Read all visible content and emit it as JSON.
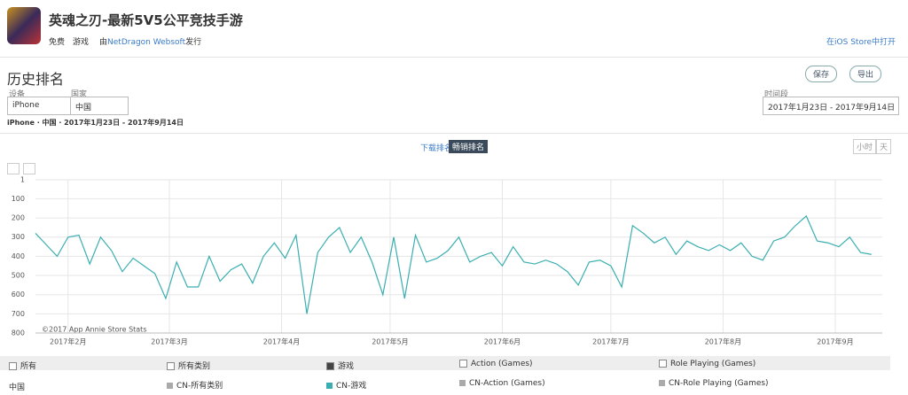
{
  "header": {
    "title": "英魂之刃-最新5V5公平竞技手游",
    "price": "免费",
    "genre": "游戏",
    "publisher_prefix": "由",
    "publisher": "NetDragon Websoft",
    "publisher_suffix": "发行",
    "open_store": "在iOS Store中打开"
  },
  "section_title": "历史排名",
  "buttons": {
    "save": "保存",
    "export": "导出"
  },
  "filters": {
    "device_label": "设备",
    "device": "iPhone",
    "country_label": "国家",
    "country": "中国",
    "period_label": "时间段",
    "period": "2017年1月23日 - 2017年9月14日"
  },
  "breadcrumb": [
    "iPhone",
    "中国",
    "2017年1月23日",
    "2017年9月14日"
  ],
  "tabs": [
    "下载排名",
    "畅销排名"
  ],
  "granularity": [
    "小时",
    "天"
  ],
  "legend": {
    "headers": [
      "所有",
      "所有类别",
      "游戏",
      "Action (Games)",
      "Role Playing (Games)"
    ],
    "row_label": "中国",
    "items": [
      "CN-所有类别",
      "CN-游戏",
      "CN-Action (Games)",
      "CN-Role Playing (Games)"
    ],
    "colors": [
      "#aaaaaa",
      "#3aaeb0",
      "#aaaaaa",
      "#aaaaaa"
    ]
  },
  "chart_data": {
    "type": "line",
    "annotation": "©2017 App Annie Store Stats",
    "x": [
      "2017-01-23",
      "2017-01-26",
      "2017-01-29",
      "2017-02-01",
      "2017-02-04",
      "2017-02-07",
      "2017-02-10",
      "2017-02-13",
      "2017-02-16",
      "2017-02-19",
      "2017-02-22",
      "2017-02-25",
      "2017-02-28",
      "2017-03-03",
      "2017-03-06",
      "2017-03-09",
      "2017-03-12",
      "2017-03-15",
      "2017-03-18",
      "2017-03-21",
      "2017-03-24",
      "2017-03-27",
      "2017-03-30",
      "2017-04-02",
      "2017-04-05",
      "2017-04-08",
      "2017-04-11",
      "2017-04-14",
      "2017-04-17",
      "2017-04-20",
      "2017-04-23",
      "2017-04-26",
      "2017-04-29",
      "2017-05-02",
      "2017-05-05",
      "2017-05-08",
      "2017-05-11",
      "2017-05-14",
      "2017-05-17",
      "2017-05-20",
      "2017-05-23",
      "2017-05-26",
      "2017-05-29",
      "2017-06-01",
      "2017-06-04",
      "2017-06-07",
      "2017-06-10",
      "2017-06-13",
      "2017-06-16",
      "2017-06-19",
      "2017-06-22",
      "2017-06-25",
      "2017-06-28",
      "2017-07-01",
      "2017-07-04",
      "2017-07-07",
      "2017-07-10",
      "2017-07-13",
      "2017-07-16",
      "2017-07-19",
      "2017-07-22",
      "2017-07-25",
      "2017-07-28",
      "2017-07-31",
      "2017-08-03",
      "2017-08-06",
      "2017-08-09",
      "2017-08-12",
      "2017-08-15",
      "2017-08-18",
      "2017-08-21",
      "2017-08-24",
      "2017-08-27",
      "2017-08-30",
      "2017-09-02",
      "2017-09-05",
      "2017-09-08",
      "2017-09-11"
    ],
    "series": [
      {
        "name": "CN-游戏",
        "color": "#3aaeb0",
        "values": [
          280,
          340,
          400,
          300,
          290,
          440,
          300,
          370,
          480,
          410,
          450,
          490,
          620,
          430,
          560,
          560,
          400,
          530,
          470,
          440,
          540,
          400,
          330,
          410,
          290,
          700,
          380,
          300,
          250,
          380,
          300,
          430,
          600,
          300,
          620,
          290,
          430,
          410,
          370,
          300,
          430,
          400,
          380,
          450,
          350,
          430,
          440,
          420,
          440,
          480,
          550,
          430,
          420,
          450,
          560,
          240,
          280,
          330,
          300,
          390,
          320,
          350,
          370,
          340,
          370,
          330,
          400,
          420,
          320,
          300,
          240,
          190,
          320,
          330,
          350,
          300,
          380,
          390
        ]
      }
    ],
    "xlim": [
      "2017-01-23",
      "2017-09-14"
    ],
    "xticks": [
      {
        "value": "2017-02-01",
        "label": "2017年2月"
      },
      {
        "value": "2017-03-01",
        "label": "2017年3月"
      },
      {
        "value": "2017-04-01",
        "label": "2017年4月"
      },
      {
        "value": "2017-05-01",
        "label": "2017年5月"
      },
      {
        "value": "2017-06-01",
        "label": "2017年6月"
      },
      {
        "value": "2017-07-01",
        "label": "2017年7月"
      },
      {
        "value": "2017-08-01",
        "label": "2017年8月"
      },
      {
        "value": "2017-09-01",
        "label": "2017年9月"
      }
    ],
    "ylim": [
      800,
      1
    ],
    "yticks": [
      1,
      100,
      200,
      300,
      400,
      500,
      600,
      700,
      800
    ],
    "grid": true
  }
}
